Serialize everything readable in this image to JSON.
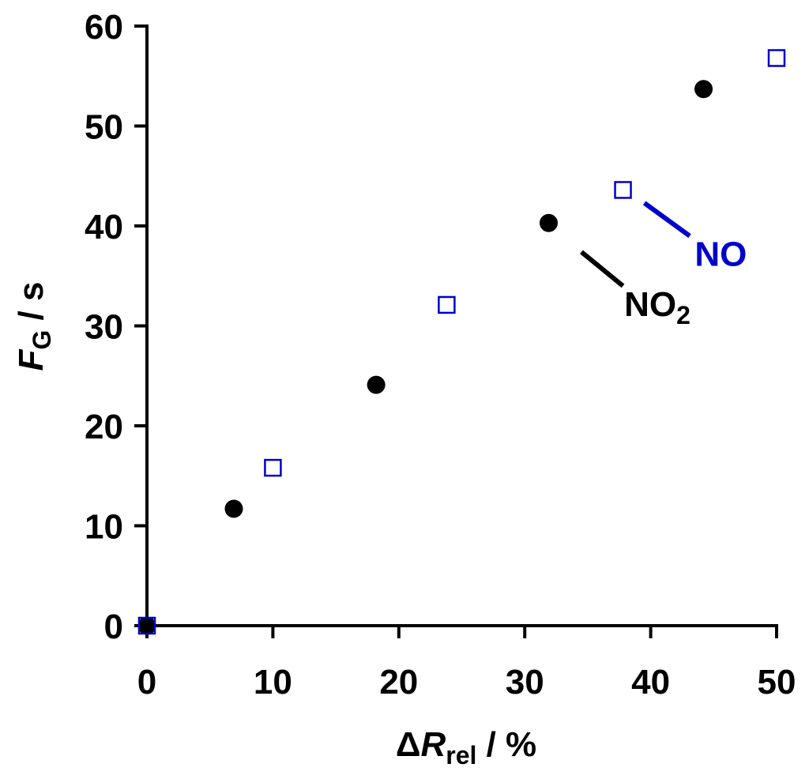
{
  "chart_data": {
    "type": "scatter",
    "xlabel": {
      "prefix": "Δ",
      "symbol": "R",
      "subscript": "rel",
      "suffix": " / %"
    },
    "ylabel": {
      "symbol": "F",
      "subscript": "G",
      "suffix": " / s"
    },
    "xlim": [
      0,
      50
    ],
    "ylim": [
      0,
      60
    ],
    "xticks": [
      0,
      10,
      20,
      30,
      40,
      50
    ],
    "yticks": [
      0,
      10,
      20,
      30,
      40,
      50,
      60
    ],
    "xtick_labels": [
      "0",
      "10",
      "20",
      "30",
      "40",
      "50"
    ],
    "ytick_labels": [
      "0",
      "10",
      "20",
      "30",
      "40",
      "50",
      "60"
    ],
    "grid": false,
    "series": [
      {
        "name": "NO2",
        "label_base": "NO",
        "label_subscript": "2",
        "marker": "filled-circle",
        "color": "#000000",
        "points": [
          {
            "x": 0,
            "y": 0
          },
          {
            "x": 6.9,
            "y": 11.7
          },
          {
            "x": 18.2,
            "y": 24.1
          },
          {
            "x": 31.9,
            "y": 40.3
          },
          {
            "x": 44.2,
            "y": 53.7
          }
        ],
        "leader": {
          "from": [
            34.5,
            37.4
          ],
          "to": [
            37.8,
            34.0
          ]
        },
        "label_at": [
          37.9,
          31.0
        ]
      },
      {
        "name": "NO",
        "label_base": "NO",
        "label_subscript": "",
        "marker": "open-square",
        "color": "#0000cc",
        "points": [
          {
            "x": 0,
            "y": 0
          },
          {
            "x": 10.0,
            "y": 15.8
          },
          {
            "x": 23.8,
            "y": 32.1
          },
          {
            "x": 37.8,
            "y": 43.6
          },
          {
            "x": 50.0,
            "y": 56.8
          }
        ],
        "leader": {
          "from": [
            39.5,
            42.3
          ],
          "to": [
            43.1,
            39.0
          ]
        },
        "label_at": [
          43.5,
          36.0
        ]
      }
    ]
  }
}
